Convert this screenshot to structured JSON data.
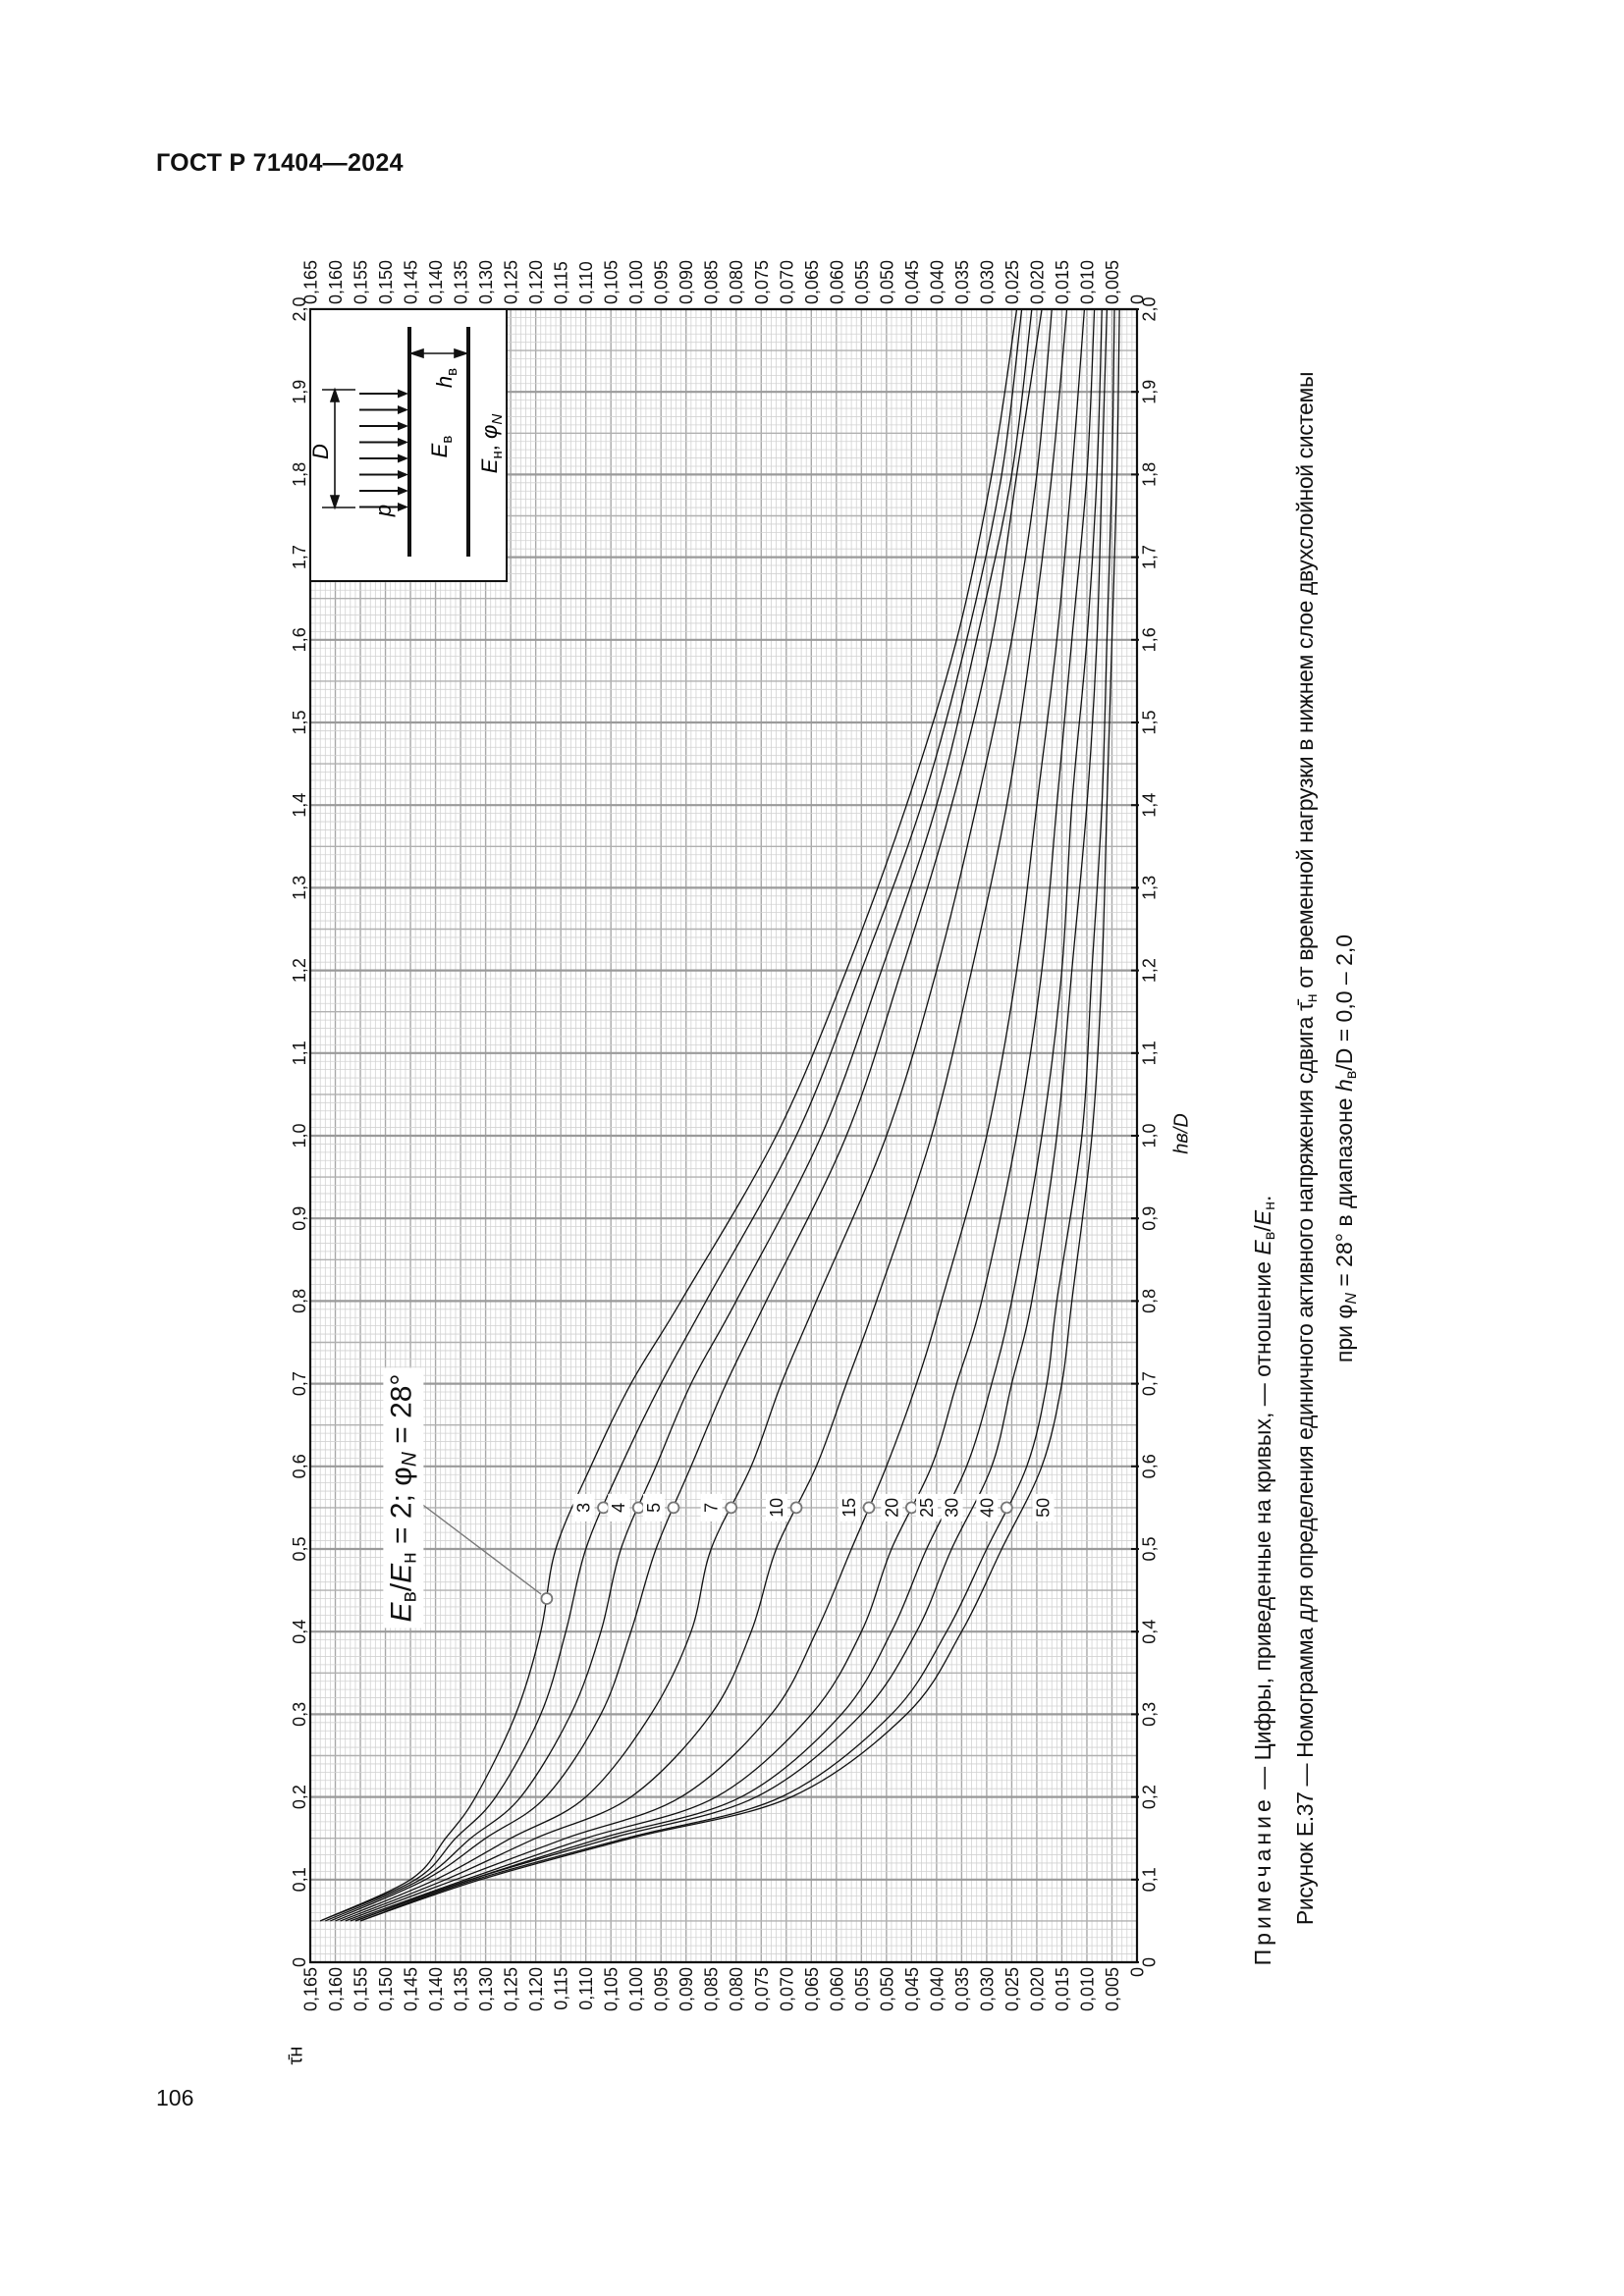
{
  "header": {
    "doc_id": "ГОСТ Р 71404—2024"
  },
  "page_number": "106",
  "note": {
    "prefix": "Примечание",
    "text": " — Цифры, приведенные на кривых, — отношение ",
    "e1": "E",
    "s1": "в",
    "slash": "/",
    "e2": "E",
    "s2": "н",
    "end": "."
  },
  "caption": {
    "line1_a": "Рисунок Е.37 — Номограмма для определения единичного активного напряжения сдвига ",
    "tau": "τ̄",
    "tau_sub": "н",
    "line1_b": " от временной нагрузки в нижнем слое двухслойной системы",
    "line2_a": "при ",
    "phi": "φ",
    "phi_sub": "N",
    "line2_b": " = 28° в диапазоне ",
    "h": "h",
    "h_sub": "в",
    "line2_c": "/D = 0,0 – 2,0"
  },
  "annotation": {
    "e1": "E",
    "s1": "в",
    "slash": "/",
    "e2": "E",
    "s2": "н",
    "mid": " = 2; ",
    "phi": "φ",
    "phi_sub": "N",
    "end": " = 28°"
  },
  "inset": {
    "p": "p",
    "D": "D",
    "Eb": "E",
    "Eb_sub": "в",
    "h": "h",
    "h_sub": "в",
    "En": "E",
    "En_sub": "н",
    "sep": ", ",
    "phi": "φ",
    "phi_sub": "N"
  },
  "chart_data": {
    "type": "line",
    "orientation": "rotated 90° counter-clockwise on page",
    "xlabel": "hв/D",
    "ylabel": "τ̄н",
    "xlim": [
      0,
      2.0
    ],
    "ylim": [
      0,
      0.165
    ],
    "x_ticks": [
      "0",
      "0,1",
      "0,2",
      "0,3",
      "0,4",
      "0,5",
      "0,6",
      "0,7",
      "0,8",
      "0,9",
      "1,0",
      "1,1",
      "1,2",
      "1,3",
      "1,4",
      "1,5",
      "1,6",
      "1,7",
      "1,8",
      "1,9",
      "2,0"
    ],
    "y_ticks": [
      "0,165",
      "0,160",
      "0,155",
      "0,150",
      "0,145",
      "0,140",
      "0,135",
      "0,130",
      "0,125",
      "0,120",
      "0,115",
      "0,110",
      "0,105",
      "0,100",
      "0,095",
      "0,090",
      "0,085",
      "0,080",
      "0,075",
      "0,070",
      "0,065",
      "0,060",
      "0,055",
      "0,050",
      "0,045",
      "0,040",
      "0,035",
      "0,030",
      "0,025",
      "0,020",
      "0,015",
      "0,010",
      "0,005",
      "0"
    ],
    "grid": true,
    "line_color": "#111111",
    "grid_color": "#b5b5b5",
    "x": [
      0.05,
      0.1,
      0.15,
      0.2,
      0.3,
      0.4,
      0.5,
      0.6,
      0.7,
      0.8,
      1.0,
      1.2,
      1.4,
      1.6,
      1.8,
      2.0
    ],
    "series": [
      {
        "name": "2",
        "values": [
          0.163,
          0.145,
          0.138,
          0.132,
          0.124,
          0.119,
          0.116,
          0.109,
          0.101,
          0.091,
          0.072,
          0.058,
          0.046,
          0.036,
          0.029,
          0.024
        ]
      },
      {
        "name": "3",
        "values": [
          0.163,
          0.144,
          0.136,
          0.128,
          0.119,
          0.114,
          0.11,
          0.103,
          0.095,
          0.086,
          0.068,
          0.055,
          0.043,
          0.034,
          0.027,
          0.023
        ]
      },
      {
        "name": "4",
        "values": [
          0.162,
          0.143,
          0.133,
          0.123,
          0.113,
          0.107,
          0.103,
          0.096,
          0.089,
          0.08,
          0.063,
          0.051,
          0.04,
          0.032,
          0.025,
          0.021
        ]
      },
      {
        "name": "5",
        "values": [
          0.161,
          0.142,
          0.13,
          0.118,
          0.107,
          0.101,
          0.096,
          0.089,
          0.082,
          0.074,
          0.058,
          0.047,
          0.037,
          0.029,
          0.024,
          0.019
        ]
      },
      {
        "name": "7",
        "values": [
          0.16,
          0.14,
          0.125,
          0.11,
          0.097,
          0.089,
          0.085,
          0.077,
          0.071,
          0.064,
          0.05,
          0.04,
          0.032,
          0.025,
          0.02,
          0.017
        ]
      },
      {
        "name": "10",
        "values": [
          0.159,
          0.138,
          0.12,
          0.101,
          0.085,
          0.077,
          0.072,
          0.064,
          0.058,
          0.052,
          0.041,
          0.033,
          0.026,
          0.021,
          0.017,
          0.014
        ]
      },
      {
        "name": "15",
        "values": [
          0.158,
          0.136,
          0.114,
          0.091,
          0.073,
          0.064,
          0.057,
          0.05,
          0.044,
          0.039,
          0.03,
          0.024,
          0.02,
          0.016,
          0.013,
          0.0105
        ]
      },
      {
        "name": "20",
        "values": [
          0.157,
          0.134,
          0.11,
          0.084,
          0.065,
          0.055,
          0.049,
          0.041,
          0.036,
          0.031,
          0.024,
          0.019,
          0.016,
          0.013,
          0.01,
          0.0085
        ]
      },
      {
        "name": "25",
        "values": [
          0.156,
          0.133,
          0.107,
          0.079,
          0.059,
          0.049,
          0.042,
          0.034,
          0.029,
          0.025,
          0.019,
          0.015,
          0.013,
          0.01,
          0.008,
          0.007
        ]
      },
      {
        "name": "30",
        "values": [
          0.156,
          0.133,
          0.105,
          0.076,
          0.055,
          0.044,
          0.037,
          0.029,
          0.025,
          0.021,
          0.016,
          0.013,
          0.01,
          0.008,
          0.007,
          0.006
        ]
      },
      {
        "name": "40",
        "values": [
          0.155,
          0.132,
          0.102,
          0.071,
          0.049,
          0.038,
          0.03,
          0.022,
          0.018,
          0.016,
          0.011,
          0.009,
          0.007,
          0.006,
          0.005,
          0.0045
        ]
      },
      {
        "name": "50",
        "values": [
          0.155,
          0.131,
          0.101,
          0.069,
          0.046,
          0.035,
          0.027,
          0.019,
          0.015,
          0.013,
          0.009,
          0.007,
          0.006,
          0.005,
          0.004,
          0.0035
        ]
      }
    ],
    "markers": [
      {
        "series": "2",
        "x": 0.44
      },
      {
        "series": "3",
        "x": 0.55
      },
      {
        "series": "4",
        "x": 0.55
      },
      {
        "series": "5",
        "x": 0.55
      },
      {
        "series": "7",
        "x": 0.55
      },
      {
        "series": "10",
        "x": 0.55
      },
      {
        "series": "15",
        "x": 0.55
      },
      {
        "series": "20",
        "x": 0.55
      },
      {
        "series": "40",
        "x": 0.55
      }
    ],
    "curve_labels": [
      {
        "text": "3",
        "series": "3",
        "x": 0.55
      },
      {
        "text": "4",
        "series": "4",
        "x": 0.55
      },
      {
        "text": "5",
        "series": "5",
        "x": 0.55
      },
      {
        "text": "7",
        "series": "7",
        "x": 0.55
      },
      {
        "text": "10",
        "series": "10",
        "x": 0.55
      },
      {
        "text": "15",
        "series": "15",
        "x": 0.55
      },
      {
        "text": "20",
        "series": "20",
        "x": 0.55
      },
      {
        "text": "25",
        "series": "25",
        "x": 0.55
      },
      {
        "text": "30",
        "series": "30",
        "x": 0.55
      },
      {
        "text": "40",
        "series": "40",
        "x": 0.55
      },
      {
        "text": "50",
        "series": "50",
        "x": 0.55
      }
    ]
  }
}
